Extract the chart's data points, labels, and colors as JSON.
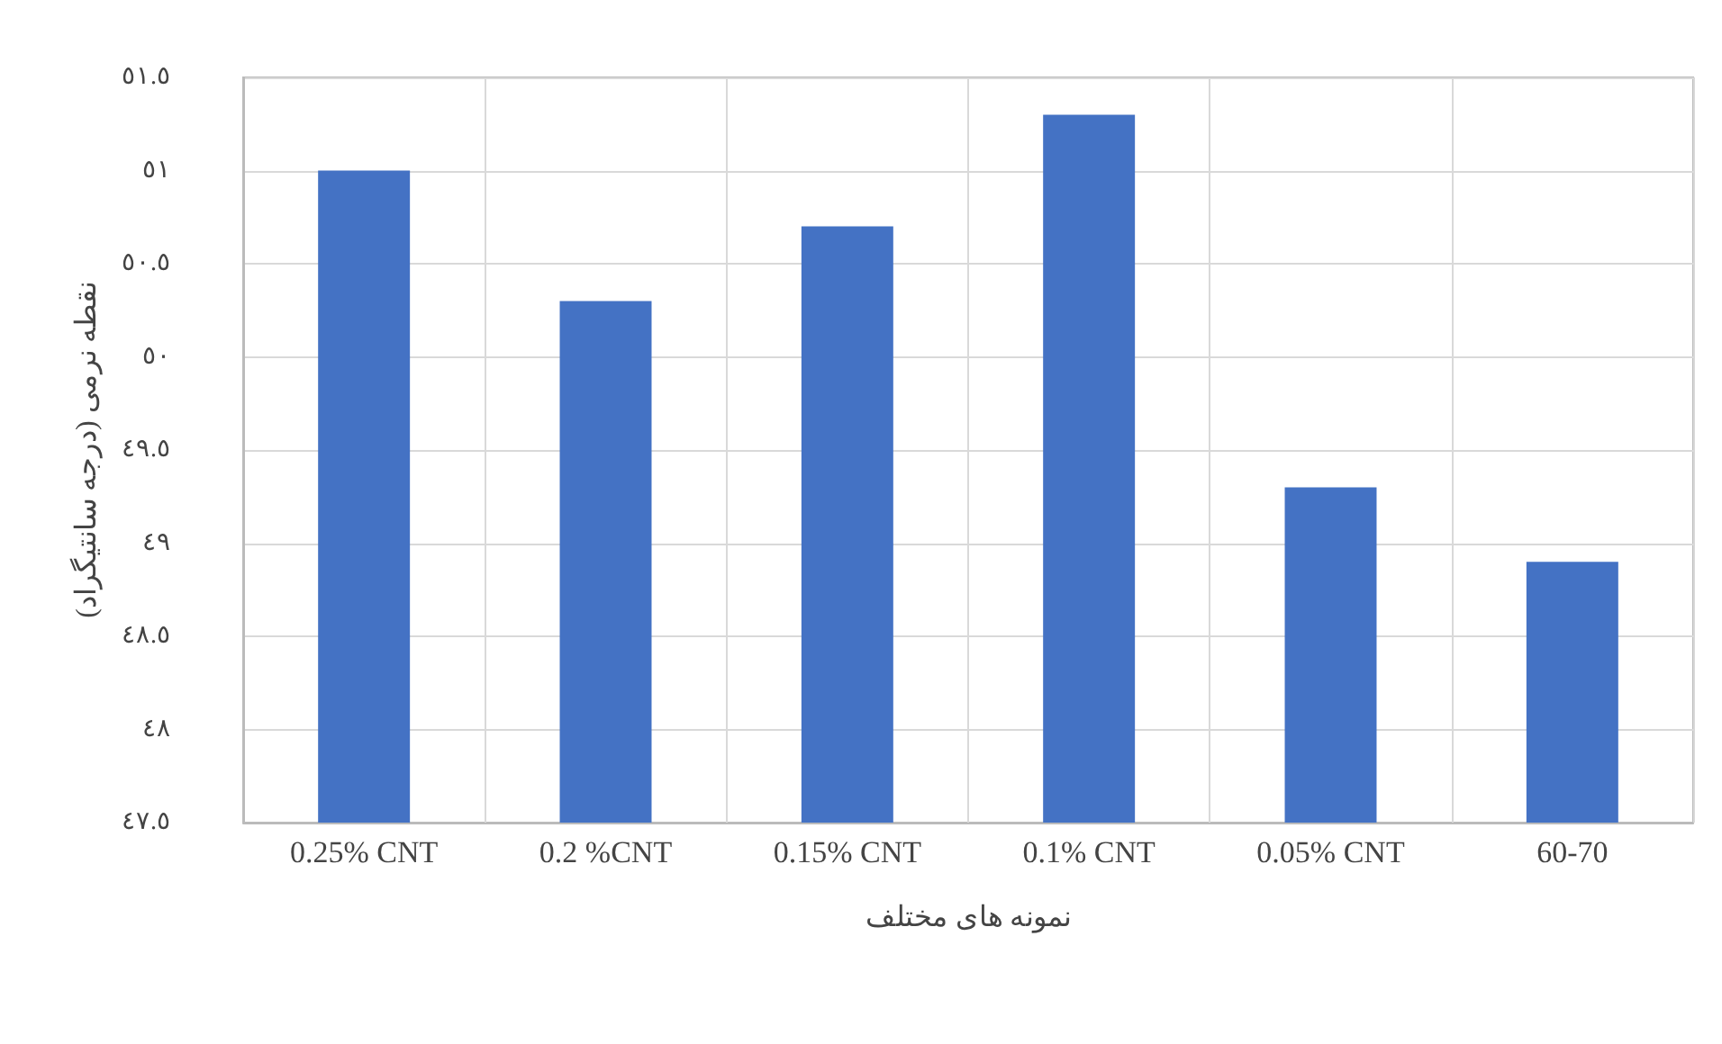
{
  "chart_data": {
    "type": "bar",
    "xlabel": "نمونه های مختلف",
    "ylabel": "نقطه نرمی (درجه سانتیگراد)",
    "categories": [
      "0.25% CNT",
      "0.2 %CNT",
      "0.15% CNT",
      "0.1% CNT",
      "0.05% CNT",
      "60-70"
    ],
    "values": [
      51.0,
      50.3,
      50.7,
      51.3,
      49.3,
      48.9
    ],
    "color": "#4472c4",
    "ylim": [
      47.5,
      51.5
    ],
    "yticks": [
      {
        "value": 47.5,
        "label": "٤٧.٥"
      },
      {
        "value": 48,
        "label": "٤٨"
      },
      {
        "value": 48.5,
        "label": "٤٨.٥"
      },
      {
        "value": 49,
        "label": "٤٩"
      },
      {
        "value": 49.5,
        "label": "٤٩.٥"
      },
      {
        "value": 50,
        "label": "٥٠"
      },
      {
        "value": 50.5,
        "label": "٥٠.٥"
      },
      {
        "value": 51,
        "label": "٥١"
      },
      {
        "value": 51.5,
        "label": "٥١.٥"
      }
    ],
    "grid": true
  }
}
